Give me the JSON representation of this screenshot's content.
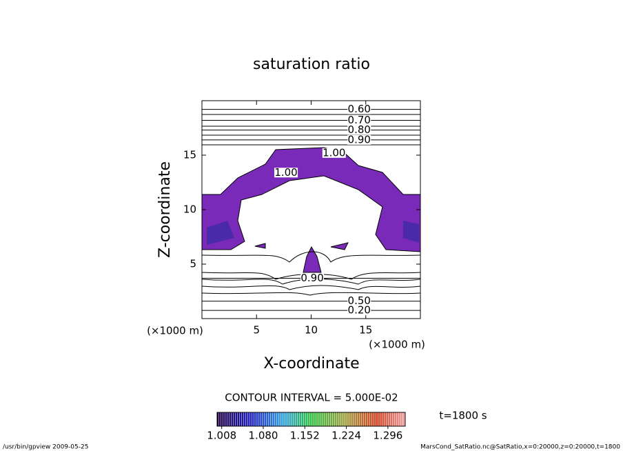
{
  "chart_data": {
    "type": "contour",
    "title": "saturation ratio",
    "xlabel": "X-coordinate",
    "ylabel": "Z-coordinate",
    "x_unit": "(×1000 m)",
    "xlim": [
      0,
      20
    ],
    "xticks": [
      5,
      10,
      15
    ],
    "ylim": [
      0,
      20
    ],
    "yticks": [
      5,
      10,
      15
    ],
    "contour_labels": {
      "levels": [
        0.6,
        0.7,
        0.8,
        0.9,
        1.0,
        1.0,
        0.9,
        0.5,
        0.2
      ],
      "value_labels": [
        "0.60",
        "0.70",
        "0.80",
        "0.90",
        "1.00",
        "1.00",
        "0.90",
        "0.50",
        "0.20"
      ],
      "x": [
        14.4,
        14.4,
        14.4,
        14.4,
        12.1,
        7.7,
        10.1,
        14.4,
        14.4
      ],
      "z": [
        19.2,
        18.2,
        17.3,
        16.4,
        15.2,
        13.4,
        3.7,
        1.6,
        0.75
      ]
    },
    "contour_interval_label": "CONTOUR INTERVAL = 5.000E-02",
    "time_label": "t=1800 s",
    "colorbar_lim": [
      1.0,
      1.326
    ],
    "colorbar_ticks": [
      1.008,
      {
        "value": 1.08,
        "label": "1.080"
      },
      1.152,
      1.224,
      1.296
    ]
  },
  "footer": {
    "left": "/usr/bin/gpview  2009-05-25",
    "right": "MarsCond_SatRatio.nc@SatRatio,x=0:20000,z=0:20000,t=1800"
  }
}
